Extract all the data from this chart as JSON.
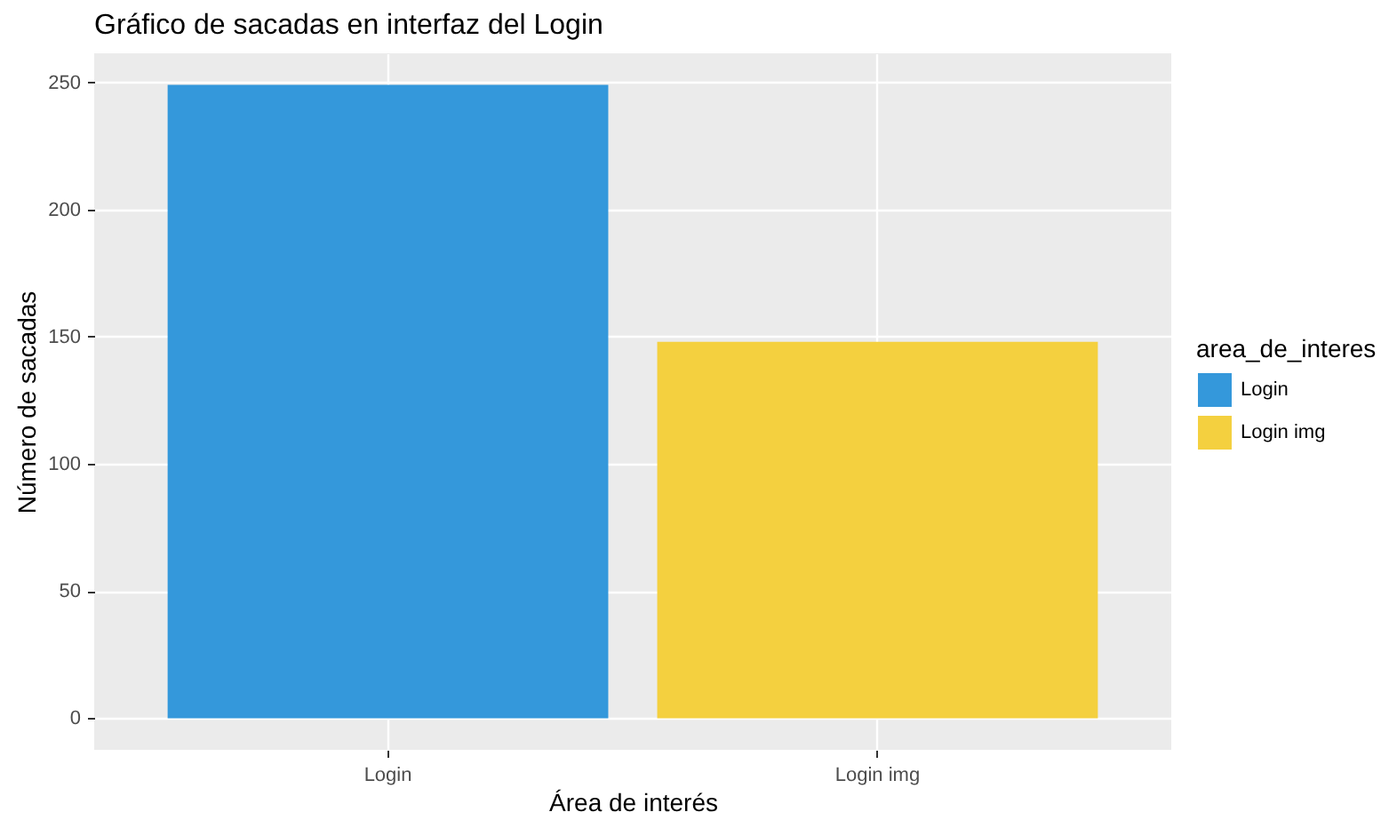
{
  "chart_data": {
    "type": "bar",
    "title": "Gráfico de sacadas en interfaz del Login",
    "xlabel": "Área de interés",
    "ylabel": "Número de sacadas",
    "legend_title": "area_de_interes",
    "categories": [
      "Login",
      "Login img"
    ],
    "series": [
      {
        "name": "Login",
        "color": "#3498db",
        "values": [
          249,
          null
        ]
      },
      {
        "name": "Login img",
        "color": "#f4d03f",
        "values": [
          null,
          148
        ]
      }
    ],
    "ylim": [
      -12.4,
      261.4
    ],
    "yticks": [
      0,
      50,
      100,
      150,
      200,
      250
    ],
    "grid": true,
    "legend": "right"
  }
}
